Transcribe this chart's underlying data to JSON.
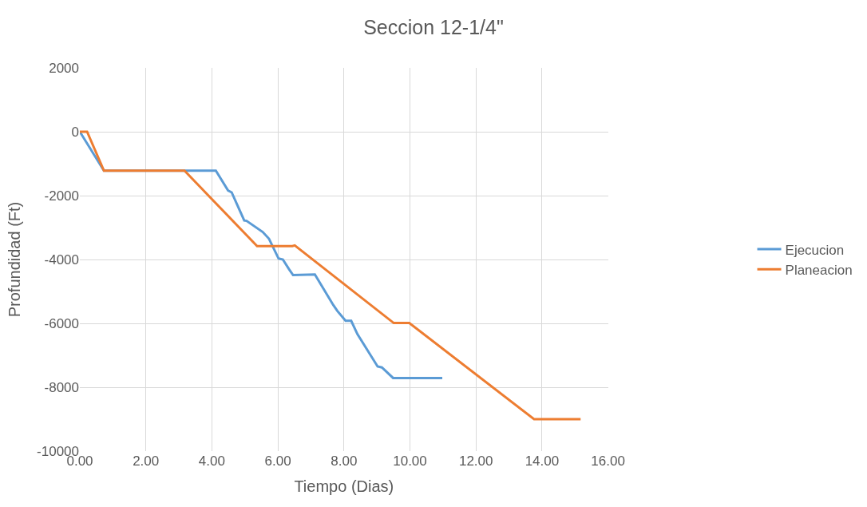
{
  "chart_data": {
    "type": "line",
    "title": "Seccion 12-1/4\"",
    "xlabel": "Tiempo (Dias)",
    "ylabel": "Profundidad (Ft)",
    "xlim": [
      0,
      16
    ],
    "xticks": [
      {
        "value": 0,
        "label": "0.00"
      },
      {
        "value": 2,
        "label": "2.00"
      },
      {
        "value": 4,
        "label": "4.00"
      },
      {
        "value": 6,
        "label": "6.00"
      },
      {
        "value": 8,
        "label": "8.00"
      },
      {
        "value": 10,
        "label": "10.00"
      },
      {
        "value": 12,
        "label": "12.00"
      },
      {
        "value": 14,
        "label": "14.00"
      },
      {
        "value": 16,
        "label": "16.00"
      }
    ],
    "ylim": [
      -10000,
      2000
    ],
    "yticks": [
      -10000,
      -8000,
      -6000,
      -4000,
      -2000,
      0,
      2000
    ],
    "grid": true,
    "legend": "right",
    "marker": "none",
    "line_style": "solid",
    "series": [
      {
        "name": "Ejecucion",
        "color": "#5b9bd5",
        "x": [
          0,
          0.73,
          4.12,
          4.49,
          4.6,
          4.98,
          5.05,
          5.54,
          5.73,
          6.02,
          6.15,
          6.34,
          6.46,
          7.12,
          7.68,
          7.8,
          8.05,
          8.22,
          8.41,
          9.02,
          9.15,
          9.49,
          10.98
        ],
        "values": [
          0,
          -1220,
          -1220,
          -1840,
          -1900,
          -2780,
          -2790,
          -3140,
          -3350,
          -3970,
          -4000,
          -4310,
          -4490,
          -4470,
          -5430,
          -5610,
          -5920,
          -5920,
          -6340,
          -7350,
          -7380,
          -7710,
          -7710
        ]
      },
      {
        "name": "Planeacion",
        "color": "#ed7d31",
        "x": [
          0,
          0.22,
          0.73,
          3.17,
          5.37,
          6.44,
          6.51,
          9.51,
          9.98,
          13.76,
          15.17
        ],
        "values": [
          0,
          0,
          -1220,
          -1220,
          -3580,
          -3580,
          -3560,
          -5990,
          -5990,
          -9000,
          -9000
        ]
      }
    ]
  }
}
